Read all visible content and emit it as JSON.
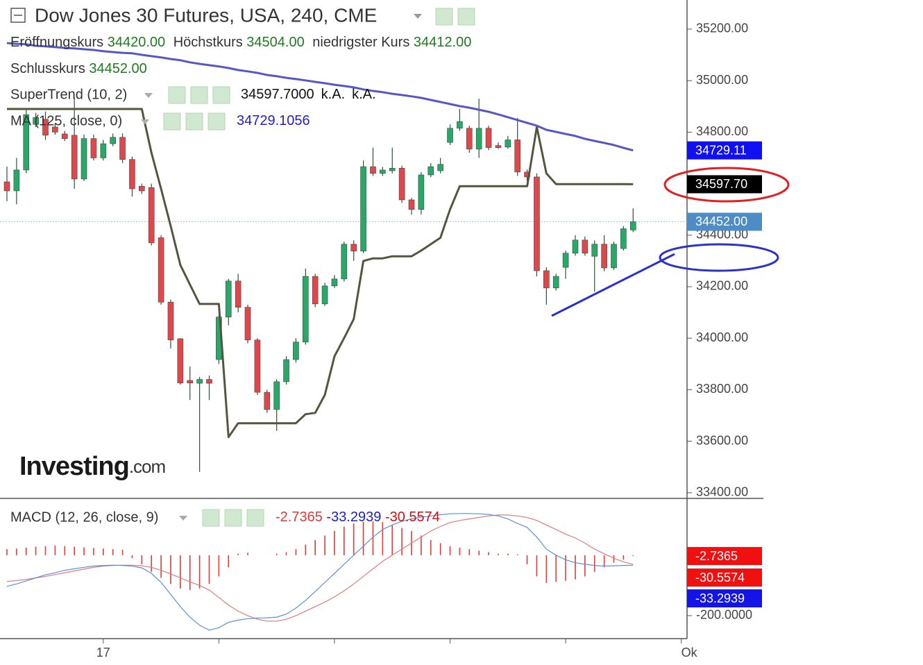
{
  "header": {
    "title": "Dow Jones 30 Futures, USA, 240, CME",
    "ohlc": [
      {
        "name": "Eröffnungskurs",
        "value": "34420.00"
      },
      {
        "name": "Höchstkurs",
        "value": "34504.00"
      },
      {
        "name": "niedrigster Kurs",
        "value": "34412.00"
      }
    ],
    "close": {
      "name": "Schlusskurs",
      "value": "34452.00"
    },
    "logo": {
      "brand": "Investing",
      "suffix": ".com"
    }
  },
  "chart_data": [
    {
      "type": "candlestick",
      "open": [
        34607,
        34572,
        34653,
        34830,
        34850,
        34820,
        34793,
        34788,
        34618,
        34775,
        34700,
        34755,
        34780,
        34694,
        34590,
        34585,
        34390,
        34140,
        33998,
        33836,
        33825,
        33840,
        33917,
        34082,
        34222,
        34120,
        33993,
        33790,
        33723,
        33831,
        33917,
        33985,
        34240,
        34133,
        34203,
        34230,
        34365,
        34338,
        34666,
        34640,
        34650,
        34660,
        34537,
        34500,
        34634,
        34650,
        34760,
        34815,
        34815,
        34734,
        34815,
        34748,
        34742,
        34770,
        34645,
        34626,
        34262,
        34195,
        34275,
        34330,
        34381,
        34318,
        34365,
        34273,
        34348,
        34420
      ],
      "high": [
        34666,
        34700,
        34890,
        34875,
        34880,
        34835,
        34805,
        34936,
        34790,
        34790,
        34770,
        34795,
        34795,
        34705,
        34600,
        34600,
        34400,
        34150,
        34000,
        33890,
        33850,
        33855,
        34090,
        34230,
        34250,
        34130,
        34000,
        33800,
        33840,
        33930,
        34000,
        34270,
        34250,
        34215,
        34245,
        34375,
        34380,
        34690,
        34740,
        34665,
        34740,
        34670,
        34545,
        34645,
        34680,
        34700,
        34830,
        34890,
        34825,
        34930,
        34825,
        34760,
        34785,
        34855,
        34655,
        34640,
        34275,
        34250,
        34340,
        34400,
        34395,
        34380,
        34400,
        34375,
        34435,
        34504
      ],
      "low": [
        34532,
        34520,
        34640,
        34820,
        34770,
        34790,
        34765,
        34580,
        34610,
        34690,
        34690,
        34745,
        34680,
        34550,
        34560,
        34360,
        34130,
        33960,
        33820,
        33760,
        33481,
        33760,
        33900,
        34050,
        34100,
        33980,
        33780,
        33710,
        33640,
        33820,
        33905,
        33975,
        34120,
        34125,
        34195,
        34220,
        34300,
        34330,
        34630,
        34630,
        34640,
        34525,
        34480,
        34480,
        34625,
        34640,
        34750,
        34805,
        34720,
        34700,
        34730,
        34735,
        34735,
        34630,
        34610,
        34240,
        34130,
        34185,
        34230,
        34320,
        34320,
        34180,
        34260,
        34265,
        34340,
        34412
      ],
      "close": [
        34572,
        34653,
        34868,
        34857,
        34788,
        34800,
        34775,
        34618,
        34775,
        34700,
        34755,
        34780,
        34694,
        34580,
        34572,
        34370,
        34140,
        33993,
        33826,
        33826,
        33840,
        33825,
        34082,
        34222,
        34120,
        33993,
        33790,
        33723,
        33831,
        33917,
        33985,
        34240,
        34133,
        34203,
        34230,
        34365,
        34338,
        34666,
        34640,
        34653,
        34660,
        34537,
        34500,
        34634,
        34666,
        34675,
        34815,
        34841,
        34734,
        34815,
        34740,
        34740,
        34770,
        34645,
        34626,
        34262,
        34195,
        34240,
        34330,
        34381,
        34330,
        34365,
        34273,
        34365,
        34425,
        34452
      ],
      "up_color": "#2aa86a",
      "down_color": "#e0474c",
      "wick_color": "#2f4f3f",
      "xlim": [
        -0.72,
        70.6
      ],
      "xticks": [
        {
          "value": 10,
          "label": "17"
        },
        {
          "value": 70,
          "label": "Ok"
        }
      ],
      "xminor": [
        22,
        34,
        46,
        58
      ],
      "ylim": [
        33378,
        35313
      ],
      "yticks": [
        {
          "value": 35200,
          "label": "35200.00"
        },
        {
          "value": 35000,
          "label": "35000.00"
        },
        {
          "value": 34800,
          "label": "34800.00"
        },
        {
          "value": 34600,
          "label": "34600.00"
        },
        {
          "value": 34400,
          "label": "34400.00"
        },
        {
          "value": 34200,
          "label": "34200.00"
        },
        {
          "value": 34000,
          "label": "34000.00"
        },
        {
          "value": 33800,
          "label": "33800.00"
        },
        {
          "value": 33600,
          "label": "33600.00"
        },
        {
          "value": 33400,
          "label": "33400.00"
        }
      ],
      "last_line": 34452,
      "last_label": "34452.00",
      "last_color": "#4d8cc4",
      "series": [
        {
          "name": "SuperTrend (10, 2)",
          "color": "#55553f",
          "tag": "34597.70",
          "tag_value": 34597.7,
          "tag_color": "#000000",
          "legend": [
            "34597.7000",
            "k.A.",
            "k.A."
          ],
          "legend_color": "#111111",
          "values": [
            34890,
            34890,
            34890,
            34890,
            34890,
            34890,
            34890,
            34890,
            34890,
            34890,
            34890,
            34890,
            34890,
            34890,
            34890,
            34720,
            34580,
            34435,
            34284,
            34208,
            34133,
            34133,
            34133,
            33616,
            33670,
            33670,
            33670,
            33670,
            33670,
            33670,
            33670,
            33705,
            33710,
            33780,
            33930,
            34000,
            34074,
            34300,
            34310,
            34310,
            34318,
            34318,
            34318,
            34340,
            34365,
            34390,
            34500,
            34590,
            34590,
            34590,
            34590,
            34590,
            34590,
            34590,
            34590,
            34820,
            34640,
            34598,
            34598,
            34598,
            34598,
            34598,
            34598,
            34598,
            34598,
            34597.7
          ]
        },
        {
          "name": "MA (125, close, 0)",
          "color": "#5558c4",
          "tag": "34729.11",
          "tag_value": 34729.11,
          "tag_color": "#1010f0",
          "legend": [
            "34729.1056"
          ],
          "legend_color": "#2323b8",
          "values": [
            35146,
            35143,
            35141,
            35135,
            35133,
            35130,
            35127,
            35125,
            35122,
            35119,
            35114,
            35111,
            35108,
            35106,
            35100,
            35095,
            35090,
            35084,
            35079,
            35071,
            35065,
            35060,
            35055,
            35049,
            35041,
            35036,
            35030,
            35022,
            35017,
            35011,
            35006,
            35001,
            34995,
            34990,
            34984,
            34979,
            34974,
            34966,
            34960,
            34955,
            34949,
            34944,
            34939,
            34933,
            34925,
            34917,
            34909,
            34901,
            34895,
            34887,
            34879,
            34869,
            34858,
            34847,
            34836,
            34825,
            34809,
            34801,
            34793,
            34785,
            34774,
            34766,
            34758,
            34750,
            34739,
            34729.11
          ]
        }
      ]
    },
    {
      "type": "macd",
      "name": "MACD (12, 26, close, 9)",
      "ylim": [
        -276,
        188
      ],
      "yticks": [
        {
          "value": -200,
          "label": "-200.0000"
        }
      ],
      "histogram": {
        "color": "#e03a3a",
        "legend": "-2.7365",
        "tag": "-2.7365",
        "values": [
          20,
          22,
          25,
          28,
          30,
          32,
          30,
          28,
          26,
          24,
          22,
          20,
          18,
          -10,
          -30,
          -55,
          -75,
          -95,
          -110,
          -115,
          -110,
          -95,
          -70,
          -40,
          5,
          8,
          0,
          0,
          5,
          10,
          20,
          35,
          50,
          65,
          80,
          95,
          105,
          110,
          112,
          110,
          100,
          90,
          80,
          65,
          50,
          40,
          30,
          25,
          20,
          15,
          10,
          5,
          5,
          3,
          -30,
          -70,
          -92,
          -88,
          -85,
          -80,
          -70,
          -55,
          -40,
          -25,
          -15,
          -2.7365
        ]
      },
      "signal": {
        "color": "#e07a7a",
        "legend": "-30.5574",
        "tag": "-30.5574",
        "tag_color": "#f01010",
        "legend_color": "#d01010",
        "values": [
          -87,
          -84,
          -80,
          -75,
          -70,
          -64,
          -58,
          -52,
          -46,
          -40,
          -36,
          -34,
          -33,
          -33,
          -35,
          -40,
          -50,
          -62,
          -75,
          -88,
          -100,
          -115,
          -140,
          -165,
          -185,
          -200,
          -212,
          -218,
          -218,
          -212,
          -200,
          -185,
          -170,
          -155,
          -138,
          -118,
          -95,
          -70,
          -45,
          -20,
          0,
          20,
          40,
          60,
          80,
          95,
          108,
          115,
          120,
          125,
          130,
          133,
          133,
          130,
          125,
          115,
          100,
          85,
          70,
          57,
          40,
          20,
          5,
          -10,
          -22,
          -30.5574
        ]
      },
      "macd": {
        "color": "#5b8fd9",
        "legend": "-33.2939",
        "tag": "-33.2939",
        "tag_color": "#1414e6",
        "legend_color": "#1f1fc0",
        "values": [
          -103,
          -95,
          -85,
          -75,
          -65,
          -58,
          -50,
          -45,
          -40,
          -36,
          -34,
          -33,
          -34,
          -36,
          -42,
          -60,
          -90,
          -130,
          -170,
          -205,
          -232,
          -248,
          -240,
          -222,
          -215,
          -210,
          -208,
          -207,
          -205,
          -195,
          -175,
          -150,
          -120,
          -90,
          -60,
          -30,
          0,
          30,
          60,
          85,
          100,
          112,
          120,
          126,
          130,
          134,
          137,
          138,
          138,
          137,
          135,
          130,
          120,
          105,
          92,
          60,
          20,
          0,
          -15,
          -25,
          -30,
          -34,
          -36,
          -35,
          -34,
          -33.2939
        ]
      }
    }
  ]
}
